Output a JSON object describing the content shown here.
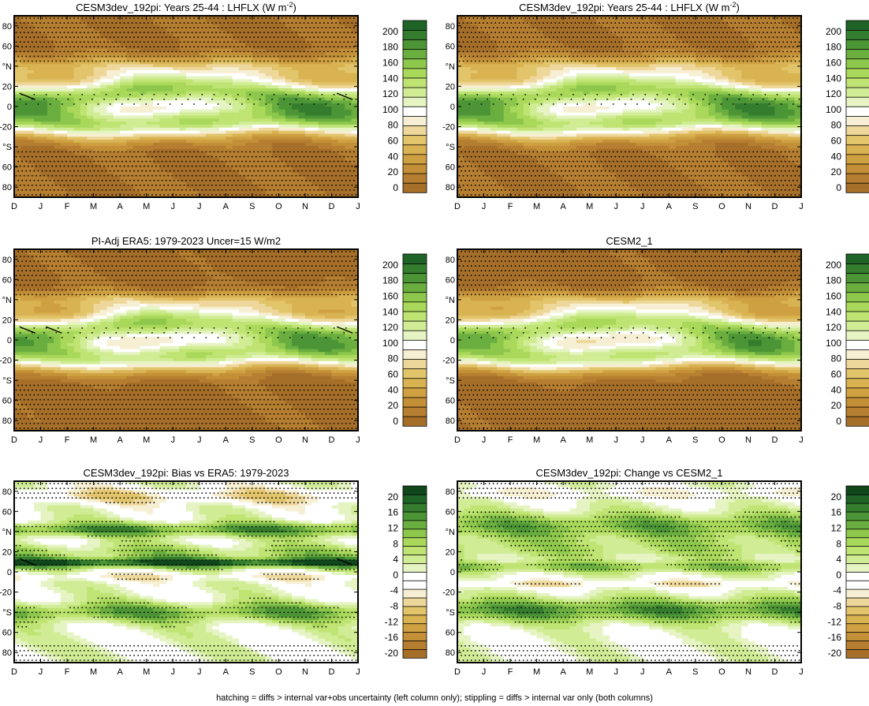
{
  "footer": "hatching = diffs > internal var+obs uncertainty (left column only); stippling = diffs > internal var only (both columns)",
  "palettes": {
    "abs": [
      "#a66f29",
      "#b57e30",
      "#c38f37",
      "#cfa041",
      "#d9b252",
      "#e2c46a",
      "#eed79a",
      "#f7efd3",
      "#ffffff",
      "#e5f4c2",
      "#d0ec95",
      "#bfe473",
      "#a9d85b",
      "#8dc74c",
      "#6aae40",
      "#4c9536",
      "#347d2e",
      "#1f6326"
    ],
    "diff": [
      "#a66f29",
      "#b57e30",
      "#c38f37",
      "#cfa041",
      "#d9b252",
      "#e2c46a",
      "#eed79a",
      "#f7efd3",
      "#ffffff",
      "#ffffff",
      "#e5f4c2",
      "#d0ec95",
      "#bfe473",
      "#a9d85b",
      "#8dc74c",
      "#6aae40",
      "#4c9536",
      "#347d2e",
      "#1f6326",
      "#10481c"
    ]
  },
  "chart_data": [
    {
      "type": "heatmap",
      "title_pre": "CESM3dev_192pi: Years 25-44 : LHFLX (W m",
      "title_sup": "-2",
      "title_post": ")",
      "field": "model",
      "palette": "abs",
      "levels": [
        0,
        200
      ],
      "colorbar_ticks": [
        "200",
        "180",
        "160",
        "140",
        "120",
        "100",
        "80",
        "60",
        "40",
        "20",
        "0"
      ],
      "xticks": [
        "D",
        "J",
        "F",
        "M",
        "A",
        "M",
        "J",
        "J",
        "A",
        "S",
        "O",
        "N",
        "D",
        "J"
      ],
      "yticks": [
        "80",
        "60",
        "°N",
        "20",
        "0",
        "-20",
        "°S",
        "60",
        "80"
      ],
      "ylim": [
        -90,
        90
      ],
      "stipple": "extra",
      "hatch": [
        [
          0.5,
          10
        ],
        [
          12.5,
          10
        ]
      ]
    },
    {
      "type": "heatmap",
      "title_pre": "CESM3dev_192pi: Years 25-44 : LHFLX (W m",
      "title_sup": "-2",
      "title_post": ")",
      "field": "model",
      "palette": "abs",
      "levels": [
        0,
        200
      ],
      "colorbar_ticks": [
        "200",
        "180",
        "160",
        "140",
        "120",
        "100",
        "80",
        "60",
        "40",
        "20",
        "0"
      ],
      "xticks": [
        "D",
        "J",
        "F",
        "M",
        "A",
        "M",
        "J",
        "J",
        "A",
        "S",
        "O",
        "N",
        "D",
        "J"
      ],
      "yticks": [
        "80",
        "60",
        "°N",
        "20",
        "0",
        "-20",
        "°S",
        "60",
        "80"
      ],
      "ylim": [
        -90,
        90
      ],
      "stipple": "extra",
      "hatch": []
    },
    {
      "type": "heatmap",
      "title_pre": "PI-Adj ERA5: 1979-2023 Uncer=15 W/m2",
      "title_sup": "",
      "title_post": "",
      "field": "obs",
      "palette": "abs",
      "levels": [
        0,
        200
      ],
      "colorbar_ticks": [
        "200",
        "180",
        "160",
        "140",
        "120",
        "100",
        "80",
        "60",
        "40",
        "20",
        "0"
      ],
      "xticks": [
        "D",
        "J",
        "F",
        "M",
        "A",
        "M",
        "J",
        "J",
        "A",
        "S",
        "O",
        "N",
        "D",
        "J"
      ],
      "yticks": [
        "80",
        "60",
        "°N",
        "20",
        "0",
        "-20",
        "°S",
        "60",
        "80"
      ],
      "ylim": [
        -90,
        90
      ],
      "stipple": "extra",
      "hatch": [
        [
          0.5,
          10
        ],
        [
          1.5,
          10
        ],
        [
          12.5,
          10
        ]
      ]
    },
    {
      "type": "heatmap",
      "title_pre": "CESM2_1",
      "title_sup": "",
      "title_post": "",
      "field": "cesm2",
      "palette": "abs",
      "levels": [
        0,
        200
      ],
      "colorbar_ticks": [
        "200",
        "180",
        "160",
        "140",
        "120",
        "100",
        "80",
        "60",
        "40",
        "20",
        "0"
      ],
      "xticks": [
        "D",
        "J",
        "F",
        "M",
        "A",
        "M",
        "J",
        "J",
        "A",
        "S",
        "O",
        "N",
        "D",
        "J"
      ],
      "yticks": [
        "80",
        "60",
        "°N",
        "20",
        "0",
        "-20",
        "°S",
        "60",
        "80"
      ],
      "ylim": [
        -90,
        90
      ],
      "stipple": "extra",
      "hatch": []
    },
    {
      "type": "heatmap",
      "title_pre": "CESM3dev_192pi: Bias vs ERA5: 1979-2023",
      "title_sup": "",
      "title_post": "",
      "field": "bias",
      "palette": "diff",
      "levels": [
        -20,
        20
      ],
      "colorbar_ticks": [
        "20",
        "16",
        "12",
        "8",
        "4",
        "0",
        "-4",
        "-8",
        "-12",
        "-16",
        "-20"
      ],
      "xticks": [
        "D",
        "J",
        "F",
        "M",
        "A",
        "M",
        "J",
        "J",
        "A",
        "S",
        "O",
        "N",
        "D",
        "J"
      ],
      "yticks": [
        "80",
        "60",
        "°N",
        "20",
        "0",
        "-20",
        "°S",
        "60",
        "80"
      ],
      "ylim": [
        -90,
        90
      ],
      "stipple": "diff",
      "hatch": [
        [
          0.5,
          10
        ],
        [
          12.5,
          10
        ]
      ]
    },
    {
      "type": "heatmap",
      "title_pre": "CESM3dev_192pi: Change vs CESM2_1",
      "title_sup": "",
      "title_post": "",
      "field": "change",
      "palette": "diff",
      "levels": [
        -20,
        20
      ],
      "colorbar_ticks": [
        "20",
        "16",
        "12",
        "8",
        "4",
        "0",
        "-4",
        "-8",
        "-12",
        "-16",
        "-20"
      ],
      "xticks": [
        "D",
        "J",
        "F",
        "M",
        "A",
        "M",
        "J",
        "J",
        "A",
        "S",
        "O",
        "N",
        "D",
        "J"
      ],
      "yticks": [
        "80",
        "60",
        "°N",
        "20",
        "0",
        "-20",
        "°S",
        "60",
        "80"
      ],
      "ylim": [
        -90,
        90
      ],
      "stipple": "diff",
      "hatch": []
    }
  ]
}
